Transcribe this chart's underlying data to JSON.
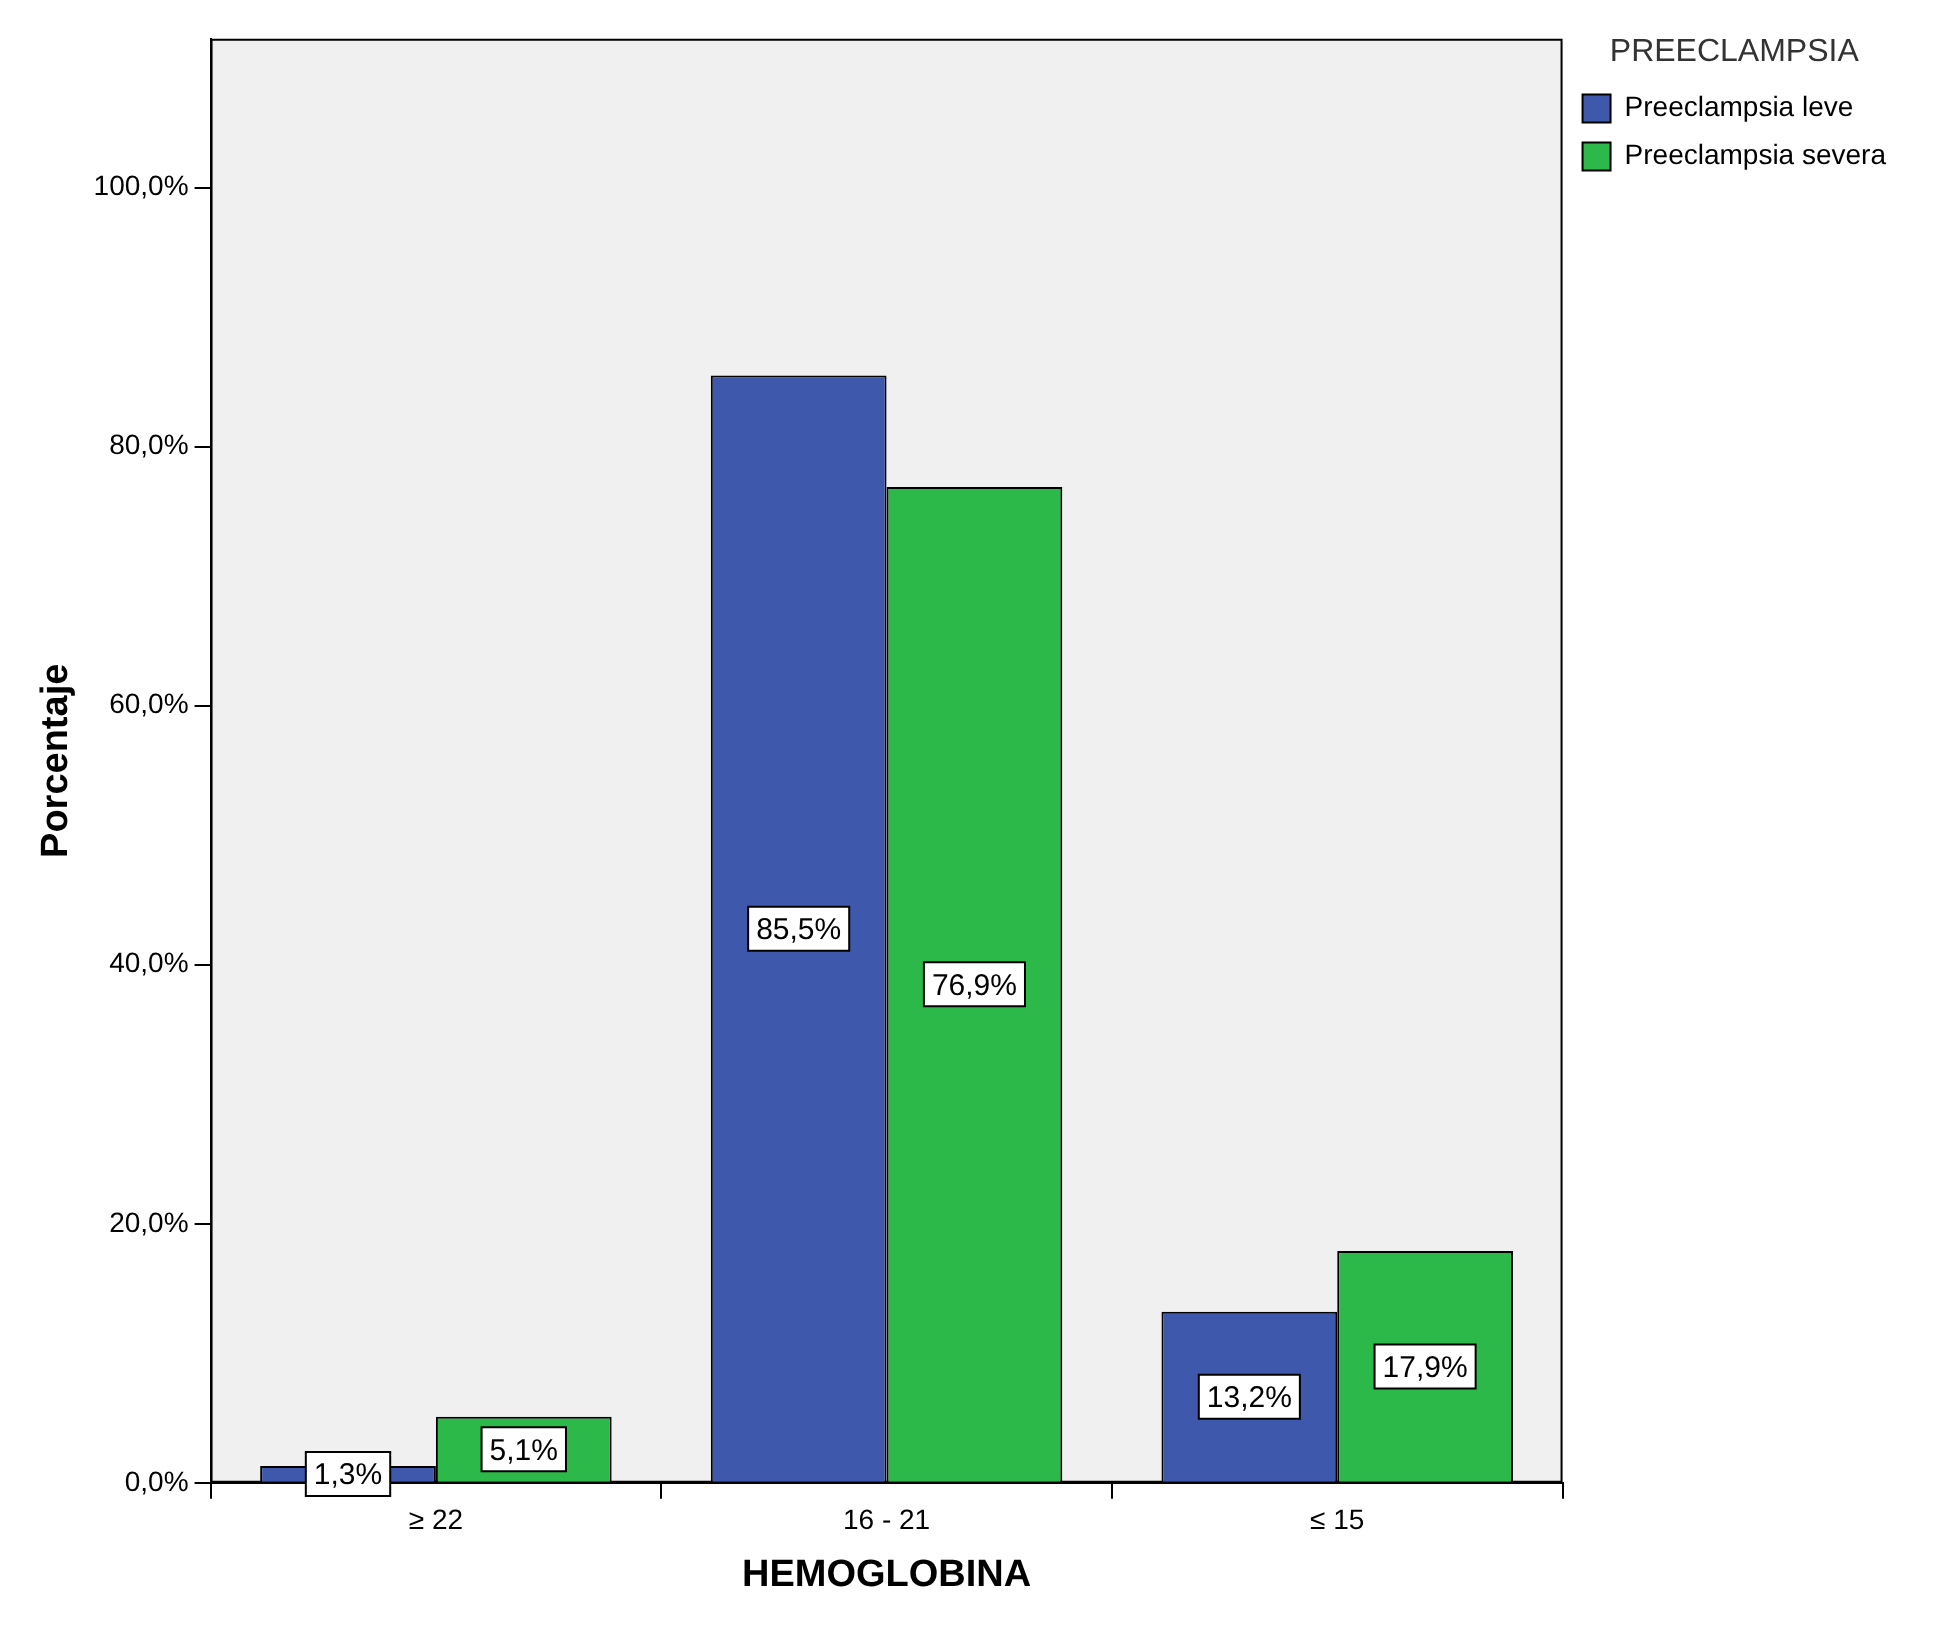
{
  "chart_data": {
    "type": "bar",
    "xlabel": "HEMOGLOBINA",
    "ylabel": "Porcentaje",
    "legend_title": "PREECLAMPSIA",
    "legend": "top right",
    "grid": false,
    "categories": [
      "≥ 22",
      "16 - 21",
      "≤ 15"
    ],
    "series": [
      {
        "name": "Preeclampsia leve",
        "color": "#3e58ac",
        "values": [
          1.3,
          85.5,
          13.2
        ],
        "value_labels": [
          "1,3%",
          "85,5%",
          "13,2%"
        ]
      },
      {
        "name": "Preeclampsia severa",
        "color": "#2db84a",
        "values": [
          5.1,
          76.9,
          17.9
        ],
        "value_labels": [
          "5,1%",
          "76,9%",
          "17,9%"
        ]
      }
    ],
    "ylim": [
      0,
      111.5
    ],
    "yticks": [
      {
        "value": 0,
        "label": "0,0%"
      },
      {
        "value": 20,
        "label": "20,0%"
      },
      {
        "value": 40,
        "label": "40,0%"
      },
      {
        "value": 60,
        "label": "60,0%"
      },
      {
        "value": 80,
        "label": "80,0%"
      },
      {
        "value": 100,
        "label": "100,0%"
      }
    ]
  }
}
